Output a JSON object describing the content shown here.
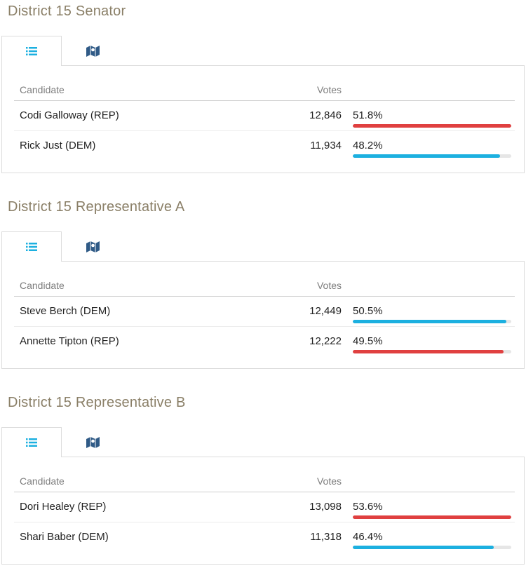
{
  "colors": {
    "rep": "#e04040",
    "dem": "#1cb0e0",
    "title": "#8a7f67",
    "icon_list": "#1cb0e0",
    "icon_map": "#2f5a86"
  },
  "icons": {
    "list_tab": "list-icon",
    "map_tab": "map-icon"
  },
  "table_headers": {
    "candidate": "Candidate",
    "votes": "Votes"
  },
  "races": [
    {
      "title": "District 15 Senator",
      "candidates": [
        {
          "name": "Codi Galloway (REP)",
          "votes": "12,846",
          "pct": "51.8%",
          "share": 1.0,
          "party": "rep"
        },
        {
          "name": "Rick Just (DEM)",
          "votes": "11,934",
          "pct": "48.2%",
          "share": 0.93,
          "party": "dem"
        }
      ]
    },
    {
      "title": "District 15 Representative A",
      "candidates": [
        {
          "name": "Steve Berch (DEM)",
          "votes": "12,449",
          "pct": "50.5%",
          "share": 0.97,
          "party": "dem"
        },
        {
          "name": "Annette Tipton (REP)",
          "votes": "12,222",
          "pct": "49.5%",
          "share": 0.95,
          "party": "rep"
        }
      ]
    },
    {
      "title": "District 15 Representative B",
      "candidates": [
        {
          "name": "Dori Healey (REP)",
          "votes": "13,098",
          "pct": "53.6%",
          "share": 1.0,
          "party": "rep"
        },
        {
          "name": "Shari Baber (DEM)",
          "votes": "11,318",
          "pct": "46.4%",
          "share": 0.89,
          "party": "dem"
        }
      ]
    }
  ]
}
